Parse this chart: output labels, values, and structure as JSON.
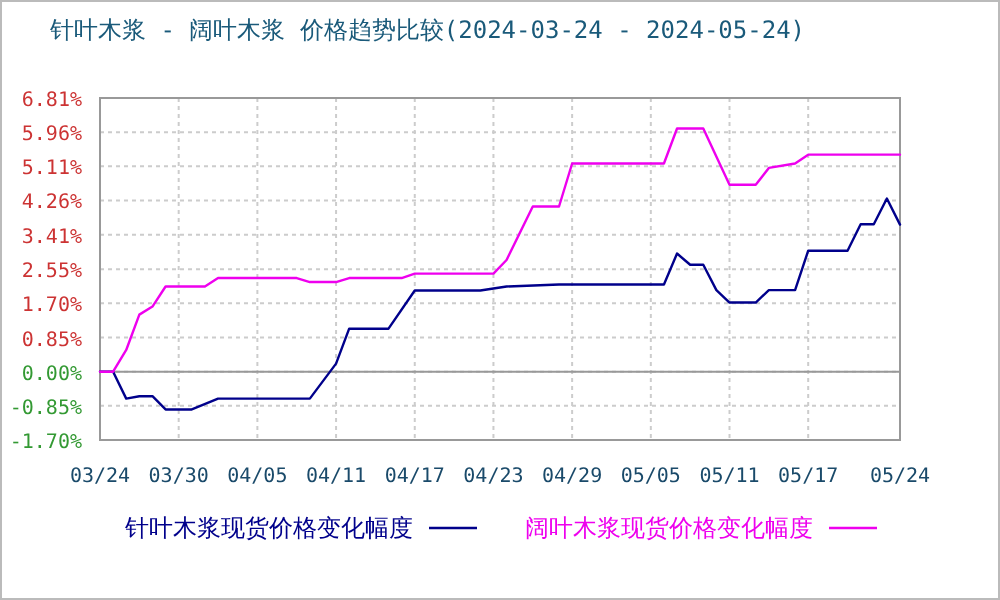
{
  "chart_data": {
    "type": "line",
    "title": "针叶木浆 - 阔叶木浆 价格趋势比较(2024-03-24 - 2024-05-24)",
    "xlim": [
      "2024-03-24",
      "2024-05-24"
    ],
    "xticks": [
      {
        "value": "2024-03-24",
        "label": "03/24"
      },
      {
        "value": "2024-03-30",
        "label": "03/30"
      },
      {
        "value": "2024-04-05",
        "label": "04/05"
      },
      {
        "value": "2024-04-11",
        "label": "04/11"
      },
      {
        "value": "2024-04-17",
        "label": "04/17"
      },
      {
        "value": "2024-04-23",
        "label": "04/23"
      },
      {
        "value": "2024-04-29",
        "label": "04/29"
      },
      {
        "value": "2024-05-05",
        "label": "05/05"
      },
      {
        "value": "2024-05-11",
        "label": "05/11"
      },
      {
        "value": "2024-05-17",
        "label": "05/17"
      },
      {
        "value": "2024-05-24",
        "label": "05/24"
      }
    ],
    "ylim": [
      -1.7,
      6.81
    ],
    "yticks": [
      {
        "value": 6.81,
        "label": "6.81%"
      },
      {
        "value": 5.96,
        "label": "5.96%"
      },
      {
        "value": 5.11,
        "label": "5.11%"
      },
      {
        "value": 4.26,
        "label": "4.26%"
      },
      {
        "value": 3.41,
        "label": "3.41%"
      },
      {
        "value": 2.55,
        "label": "2.55%"
      },
      {
        "value": 1.7,
        "label": "1.70%"
      },
      {
        "value": 0.85,
        "label": "0.85%"
      },
      {
        "value": 0,
        "label": "0.00%"
      },
      {
        "value": -0.85,
        "label": "-0.85%"
      },
      {
        "value": -1.7,
        "label": "-1.70%"
      }
    ],
    "grid": true,
    "legend": "bottom",
    "line_style": "solid",
    "ref_lines": [
      {
        "axis": "y",
        "value": 0,
        "color": "#999999"
      }
    ],
    "series": [
      {
        "name": "针叶木浆现货价格变化幅度",
        "color": "#00008b",
        "x": [
          "2024-03-24",
          "2024-03-25",
          "2024-03-26",
          "2024-03-27",
          "2024-03-28",
          "2024-03-29",
          "2024-03-31",
          "2024-04-02",
          "2024-04-09",
          "2024-04-11",
          "2024-04-12",
          "2024-04-15",
          "2024-04-17",
          "2024-04-22",
          "2024-04-24",
          "2024-04-28",
          "2024-05-06",
          "2024-05-07",
          "2024-05-08",
          "2024-05-09",
          "2024-05-10",
          "2024-05-11",
          "2024-05-13",
          "2024-05-14",
          "2024-05-16",
          "2024-05-17",
          "2024-05-20",
          "2024-05-21",
          "2024-05-22",
          "2024-05-23",
          "2024-05-24"
        ],
        "values": [
          0.0,
          0.0,
          -0.67,
          -0.61,
          -0.61,
          -0.94,
          -0.94,
          -0.67,
          -0.67,
          0.2,
          1.07,
          1.07,
          2.02,
          2.02,
          2.12,
          2.17,
          2.17,
          2.94,
          2.66,
          2.66,
          2.03,
          1.72,
          1.72,
          2.03,
          2.03,
          3.01,
          3.01,
          3.67,
          3.67,
          4.31,
          3.66
        ]
      },
      {
        "name": "阔叶木浆现货价格变化幅度",
        "color": "#ee00ee",
        "x": [
          "2024-03-24",
          "2024-03-25",
          "2024-03-26",
          "2024-03-27",
          "2024-03-28",
          "2024-03-29",
          "2024-04-01",
          "2024-04-02",
          "2024-04-08",
          "2024-04-09",
          "2024-04-11",
          "2024-04-12",
          "2024-04-16",
          "2024-04-17",
          "2024-04-23",
          "2024-04-24",
          "2024-04-26",
          "2024-04-28",
          "2024-04-29",
          "2024-05-06",
          "2024-05-07",
          "2024-05-09",
          "2024-05-11",
          "2024-05-13",
          "2024-05-14",
          "2024-05-16",
          "2024-05-17",
          "2024-05-24"
        ],
        "values": [
          0.0,
          0.0,
          0.54,
          1.42,
          1.62,
          2.12,
          2.12,
          2.33,
          2.33,
          2.23,
          2.23,
          2.33,
          2.33,
          2.44,
          2.44,
          2.78,
          4.11,
          4.11,
          5.18,
          5.18,
          6.05,
          6.05,
          4.65,
          4.65,
          5.07,
          5.18,
          5.4,
          5.4
        ]
      }
    ]
  }
}
